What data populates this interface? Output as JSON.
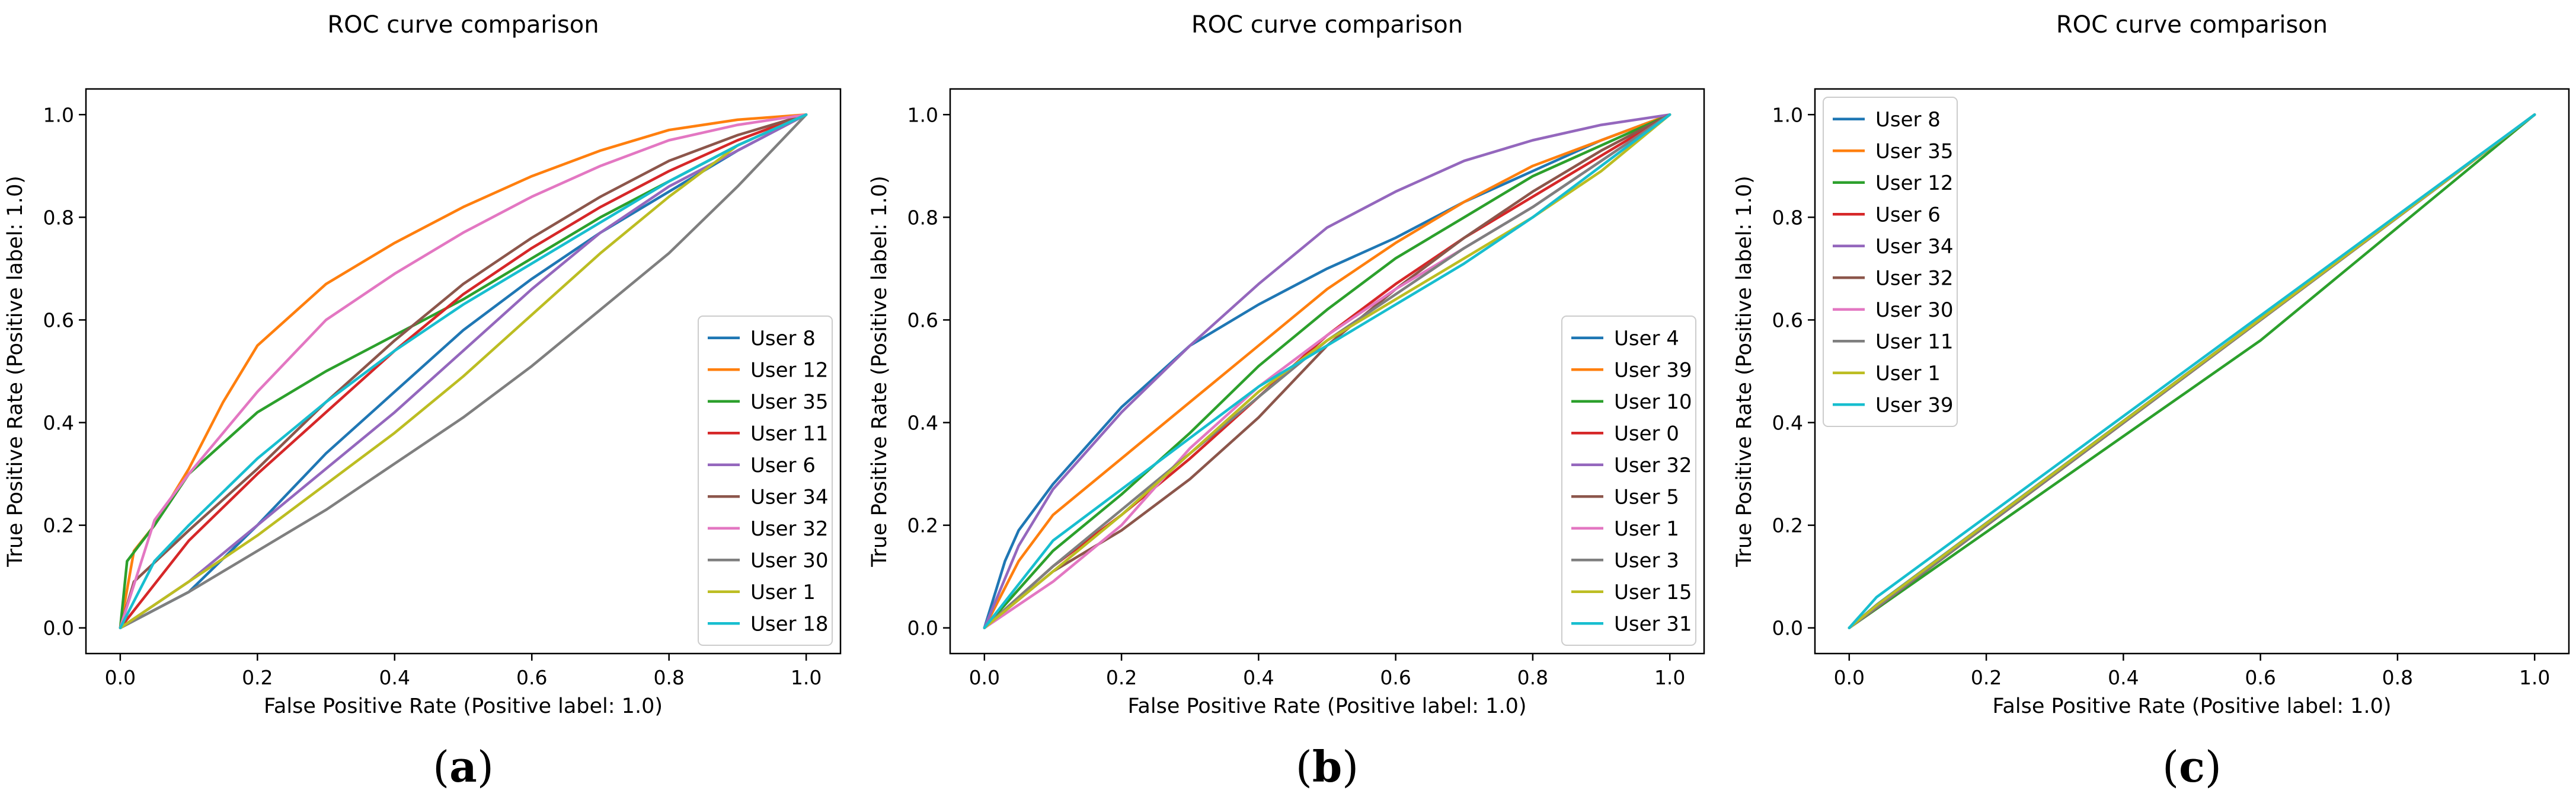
{
  "chart_data": [
    {
      "id": "a",
      "type": "line",
      "title": "ROC curve comparison",
      "xlabel": "False Positive Rate (Positive label: 1.0)",
      "ylabel": "True Positive Rate (Positive label: 1.0)",
      "xlim": [
        -0.05,
        1.05
      ],
      "ylim": [
        -0.05,
        1.05
      ],
      "xticks": [
        0.0,
        0.2,
        0.4,
        0.6,
        0.8,
        1.0
      ],
      "yticks": [
        0.0,
        0.2,
        0.4,
        0.6,
        0.8,
        1.0
      ],
      "tick_labels": [
        "0.0",
        "0.2",
        "0.4",
        "0.6",
        "0.8",
        "1.0"
      ],
      "legend_position": "lower-right",
      "panel_label": "(a)",
      "series": [
        {
          "name": "User 8",
          "color": "#1f77b4",
          "x": [
            0,
            0.1,
            0.2,
            0.3,
            0.4,
            0.5,
            0.6,
            0.7,
            0.8,
            0.9,
            1.0
          ],
          "y": [
            0,
            0.07,
            0.2,
            0.34,
            0.46,
            0.58,
            0.68,
            0.77,
            0.85,
            0.93,
            1.0
          ]
        },
        {
          "name": "User 12",
          "color": "#ff7f0e",
          "x": [
            0,
            0.02,
            0.05,
            0.1,
            0.15,
            0.2,
            0.3,
            0.4,
            0.5,
            0.6,
            0.7,
            0.8,
            0.9,
            1.0
          ],
          "y": [
            0,
            0.15,
            0.2,
            0.31,
            0.44,
            0.55,
            0.67,
            0.75,
            0.82,
            0.88,
            0.93,
            0.97,
            0.99,
            1.0
          ]
        },
        {
          "name": "User 35",
          "color": "#2ca02c",
          "x": [
            0,
            0.01,
            0.05,
            0.1,
            0.2,
            0.3,
            0.4,
            0.5,
            0.6,
            0.7,
            0.8,
            0.9,
            1.0
          ],
          "y": [
            0,
            0.13,
            0.2,
            0.3,
            0.42,
            0.5,
            0.57,
            0.64,
            0.72,
            0.8,
            0.87,
            0.94,
            1.0
          ]
        },
        {
          "name": "User 11",
          "color": "#d62728",
          "x": [
            0,
            0.1,
            0.2,
            0.3,
            0.4,
            0.5,
            0.6,
            0.7,
            0.8,
            0.9,
            1.0
          ],
          "y": [
            0,
            0.17,
            0.3,
            0.42,
            0.54,
            0.65,
            0.74,
            0.82,
            0.89,
            0.95,
            1.0
          ]
        },
        {
          "name": "User 6",
          "color": "#9467bd",
          "x": [
            0,
            0.1,
            0.2,
            0.3,
            0.4,
            0.5,
            0.6,
            0.7,
            0.8,
            0.9,
            1.0
          ],
          "y": [
            0,
            0.09,
            0.2,
            0.31,
            0.42,
            0.54,
            0.66,
            0.77,
            0.86,
            0.93,
            1.0
          ]
        },
        {
          "name": "User 34",
          "color": "#8c564b",
          "x": [
            0,
            0.02,
            0.1,
            0.2,
            0.3,
            0.4,
            0.5,
            0.6,
            0.7,
            0.8,
            0.9,
            1.0
          ],
          "y": [
            0,
            0.09,
            0.19,
            0.31,
            0.44,
            0.56,
            0.67,
            0.76,
            0.84,
            0.91,
            0.96,
            1.0
          ]
        },
        {
          "name": "User 32",
          "color": "#e377c2",
          "x": [
            0,
            0.05,
            0.1,
            0.2,
            0.3,
            0.4,
            0.5,
            0.6,
            0.7,
            0.8,
            0.9,
            1.0
          ],
          "y": [
            0,
            0.21,
            0.3,
            0.46,
            0.6,
            0.69,
            0.77,
            0.84,
            0.9,
            0.95,
            0.98,
            1.0
          ]
        },
        {
          "name": "User 30",
          "color": "#7f7f7f",
          "x": [
            0,
            0.1,
            0.2,
            0.3,
            0.4,
            0.5,
            0.6,
            0.7,
            0.8,
            0.9,
            1.0
          ],
          "y": [
            0,
            0.07,
            0.15,
            0.23,
            0.32,
            0.41,
            0.51,
            0.62,
            0.73,
            0.86,
            1.0
          ]
        },
        {
          "name": "User 1",
          "color": "#bcbd22",
          "x": [
            0,
            0.1,
            0.2,
            0.3,
            0.4,
            0.5,
            0.6,
            0.7,
            0.8,
            0.9,
            1.0
          ],
          "y": [
            0,
            0.09,
            0.18,
            0.28,
            0.38,
            0.49,
            0.61,
            0.73,
            0.84,
            0.94,
            1.0
          ]
        },
        {
          "name": "User 18",
          "color": "#17becf",
          "x": [
            0,
            0.05,
            0.1,
            0.2,
            0.3,
            0.4,
            0.5,
            0.6,
            0.7,
            0.8,
            0.9,
            1.0
          ],
          "y": [
            0,
            0.13,
            0.2,
            0.33,
            0.44,
            0.54,
            0.63,
            0.71,
            0.79,
            0.87,
            0.94,
            1.0
          ]
        }
      ]
    },
    {
      "id": "b",
      "type": "line",
      "title": "ROC curve comparison",
      "xlabel": "False Positive Rate (Positive label: 1.0)",
      "ylabel": "True Positive Rate (Positive label: 1.0)",
      "xlim": [
        -0.05,
        1.05
      ],
      "ylim": [
        -0.05,
        1.05
      ],
      "xticks": [
        0.0,
        0.2,
        0.4,
        0.6,
        0.8,
        1.0
      ],
      "yticks": [
        0.0,
        0.2,
        0.4,
        0.6,
        0.8,
        1.0
      ],
      "tick_labels": [
        "0.0",
        "0.2",
        "0.4",
        "0.6",
        "0.8",
        "1.0"
      ],
      "legend_position": "lower-right",
      "panel_label": "(b)",
      "series": [
        {
          "name": "User 4",
          "color": "#1f77b4",
          "x": [
            0,
            0.03,
            0.05,
            0.1,
            0.2,
            0.3,
            0.4,
            0.5,
            0.6,
            0.7,
            0.8,
            0.9,
            1.0
          ],
          "y": [
            0,
            0.13,
            0.19,
            0.28,
            0.43,
            0.55,
            0.63,
            0.7,
            0.76,
            0.83,
            0.89,
            0.95,
            1.0
          ]
        },
        {
          "name": "User 39",
          "color": "#ff7f0e",
          "x": [
            0,
            0.05,
            0.1,
            0.2,
            0.3,
            0.4,
            0.5,
            0.6,
            0.7,
            0.8,
            0.9,
            1.0
          ],
          "y": [
            0,
            0.13,
            0.22,
            0.33,
            0.44,
            0.55,
            0.66,
            0.75,
            0.83,
            0.9,
            0.95,
            1.0
          ]
        },
        {
          "name": "User 10",
          "color": "#2ca02c",
          "x": [
            0,
            0.1,
            0.2,
            0.3,
            0.4,
            0.5,
            0.6,
            0.7,
            0.8,
            0.9,
            1.0
          ],
          "y": [
            0,
            0.15,
            0.26,
            0.38,
            0.51,
            0.62,
            0.72,
            0.8,
            0.88,
            0.94,
            1.0
          ]
        },
        {
          "name": "User 0",
          "color": "#d62728",
          "x": [
            0,
            0.1,
            0.2,
            0.3,
            0.4,
            0.5,
            0.6,
            0.7,
            0.8,
            0.9,
            1.0
          ],
          "y": [
            0,
            0.12,
            0.22,
            0.33,
            0.45,
            0.57,
            0.67,
            0.76,
            0.84,
            0.92,
            1.0
          ]
        },
        {
          "name": "User 32",
          "color": "#9467bd",
          "x": [
            0,
            0.05,
            0.1,
            0.2,
            0.3,
            0.4,
            0.5,
            0.6,
            0.7,
            0.8,
            0.9,
            1.0
          ],
          "y": [
            0,
            0.16,
            0.27,
            0.42,
            0.55,
            0.67,
            0.78,
            0.85,
            0.91,
            0.95,
            0.98,
            1.0
          ]
        },
        {
          "name": "User 5",
          "color": "#8c564b",
          "x": [
            0,
            0.1,
            0.2,
            0.3,
            0.4,
            0.5,
            0.6,
            0.7,
            0.8,
            0.9,
            1.0
          ],
          "y": [
            0,
            0.11,
            0.19,
            0.29,
            0.41,
            0.55,
            0.66,
            0.76,
            0.85,
            0.93,
            1.0
          ]
        },
        {
          "name": "User 1",
          "color": "#e377c2",
          "x": [
            0,
            0.1,
            0.2,
            0.3,
            0.4,
            0.5,
            0.6,
            0.7,
            0.8,
            0.9,
            1.0
          ],
          "y": [
            0,
            0.09,
            0.2,
            0.35,
            0.47,
            0.57,
            0.66,
            0.74,
            0.82,
            0.91,
            1.0
          ]
        },
        {
          "name": "User 3",
          "color": "#7f7f7f",
          "x": [
            0,
            0.1,
            0.2,
            0.3,
            0.4,
            0.5,
            0.6,
            0.7,
            0.8,
            0.9,
            1.0
          ],
          "y": [
            0,
            0.12,
            0.23,
            0.34,
            0.45,
            0.56,
            0.65,
            0.74,
            0.82,
            0.91,
            1.0
          ]
        },
        {
          "name": "User 15",
          "color": "#bcbd22",
          "x": [
            0,
            0.1,
            0.2,
            0.3,
            0.4,
            0.5,
            0.6,
            0.7,
            0.8,
            0.9,
            1.0
          ],
          "y": [
            0,
            0.11,
            0.22,
            0.34,
            0.46,
            0.56,
            0.64,
            0.72,
            0.8,
            0.89,
            1.0
          ]
        },
        {
          "name": "User 31",
          "color": "#17becf",
          "x": [
            0,
            0.1,
            0.2,
            0.3,
            0.4,
            0.5,
            0.6,
            0.7,
            0.8,
            0.9,
            1.0
          ],
          "y": [
            0,
            0.17,
            0.27,
            0.37,
            0.47,
            0.55,
            0.63,
            0.71,
            0.8,
            0.9,
            1.0
          ]
        }
      ]
    },
    {
      "id": "c",
      "type": "line",
      "title": "ROC curve comparison",
      "xlabel": "False Positive Rate (Positive label: 1.0)",
      "ylabel": "True Positive Rate (Positive label: 1.0)",
      "xlim": [
        -0.05,
        1.05
      ],
      "ylim": [
        -0.05,
        1.05
      ],
      "xticks": [
        0.0,
        0.2,
        0.4,
        0.6,
        0.8,
        1.0
      ],
      "yticks": [
        0.0,
        0.2,
        0.4,
        0.6,
        0.8,
        1.0
      ],
      "tick_labels": [
        "0.0",
        "0.2",
        "0.4",
        "0.6",
        "0.8",
        "1.0"
      ],
      "legend_position": "upper-left",
      "panel_label": "(c)",
      "series": [
        {
          "name": "User 8",
          "color": "#1f77b4",
          "x": [
            0,
            0.04,
            1.0
          ],
          "y": [
            0,
            0.045,
            1.0
          ]
        },
        {
          "name": "User 35",
          "color": "#ff7f0e",
          "x": [
            0,
            0.04,
            1.0
          ],
          "y": [
            0,
            0.043,
            1.0
          ]
        },
        {
          "name": "User 12",
          "color": "#2ca02c",
          "x": [
            0,
            0.6,
            1.0
          ],
          "y": [
            0,
            0.56,
            1.0
          ]
        },
        {
          "name": "User 6",
          "color": "#d62728",
          "x": [
            0,
            0.04,
            1.0
          ],
          "y": [
            0,
            0.04,
            1.0
          ]
        },
        {
          "name": "User 34",
          "color": "#9467bd",
          "x": [
            0,
            0.04,
            1.0
          ],
          "y": [
            0,
            0.041,
            1.0
          ]
        },
        {
          "name": "User 32",
          "color": "#8c564b",
          "x": [
            0,
            0.04,
            1.0
          ],
          "y": [
            0,
            0.039,
            1.0
          ]
        },
        {
          "name": "User 30",
          "color": "#e377c2",
          "x": [
            0,
            0.04,
            1.0
          ],
          "y": [
            0,
            0.042,
            1.0
          ]
        },
        {
          "name": "User 11",
          "color": "#7f7f7f",
          "x": [
            0,
            0.04,
            1.0
          ],
          "y": [
            0,
            0.04,
            1.0
          ]
        },
        {
          "name": "User 1",
          "color": "#bcbd22",
          "x": [
            0,
            0.04,
            1.0
          ],
          "y": [
            0,
            0.044,
            1.0
          ]
        },
        {
          "name": "User 39",
          "color": "#17becf",
          "x": [
            0,
            0.04,
            1.0
          ],
          "y": [
            0,
            0.06,
            1.0
          ]
        }
      ]
    }
  ]
}
